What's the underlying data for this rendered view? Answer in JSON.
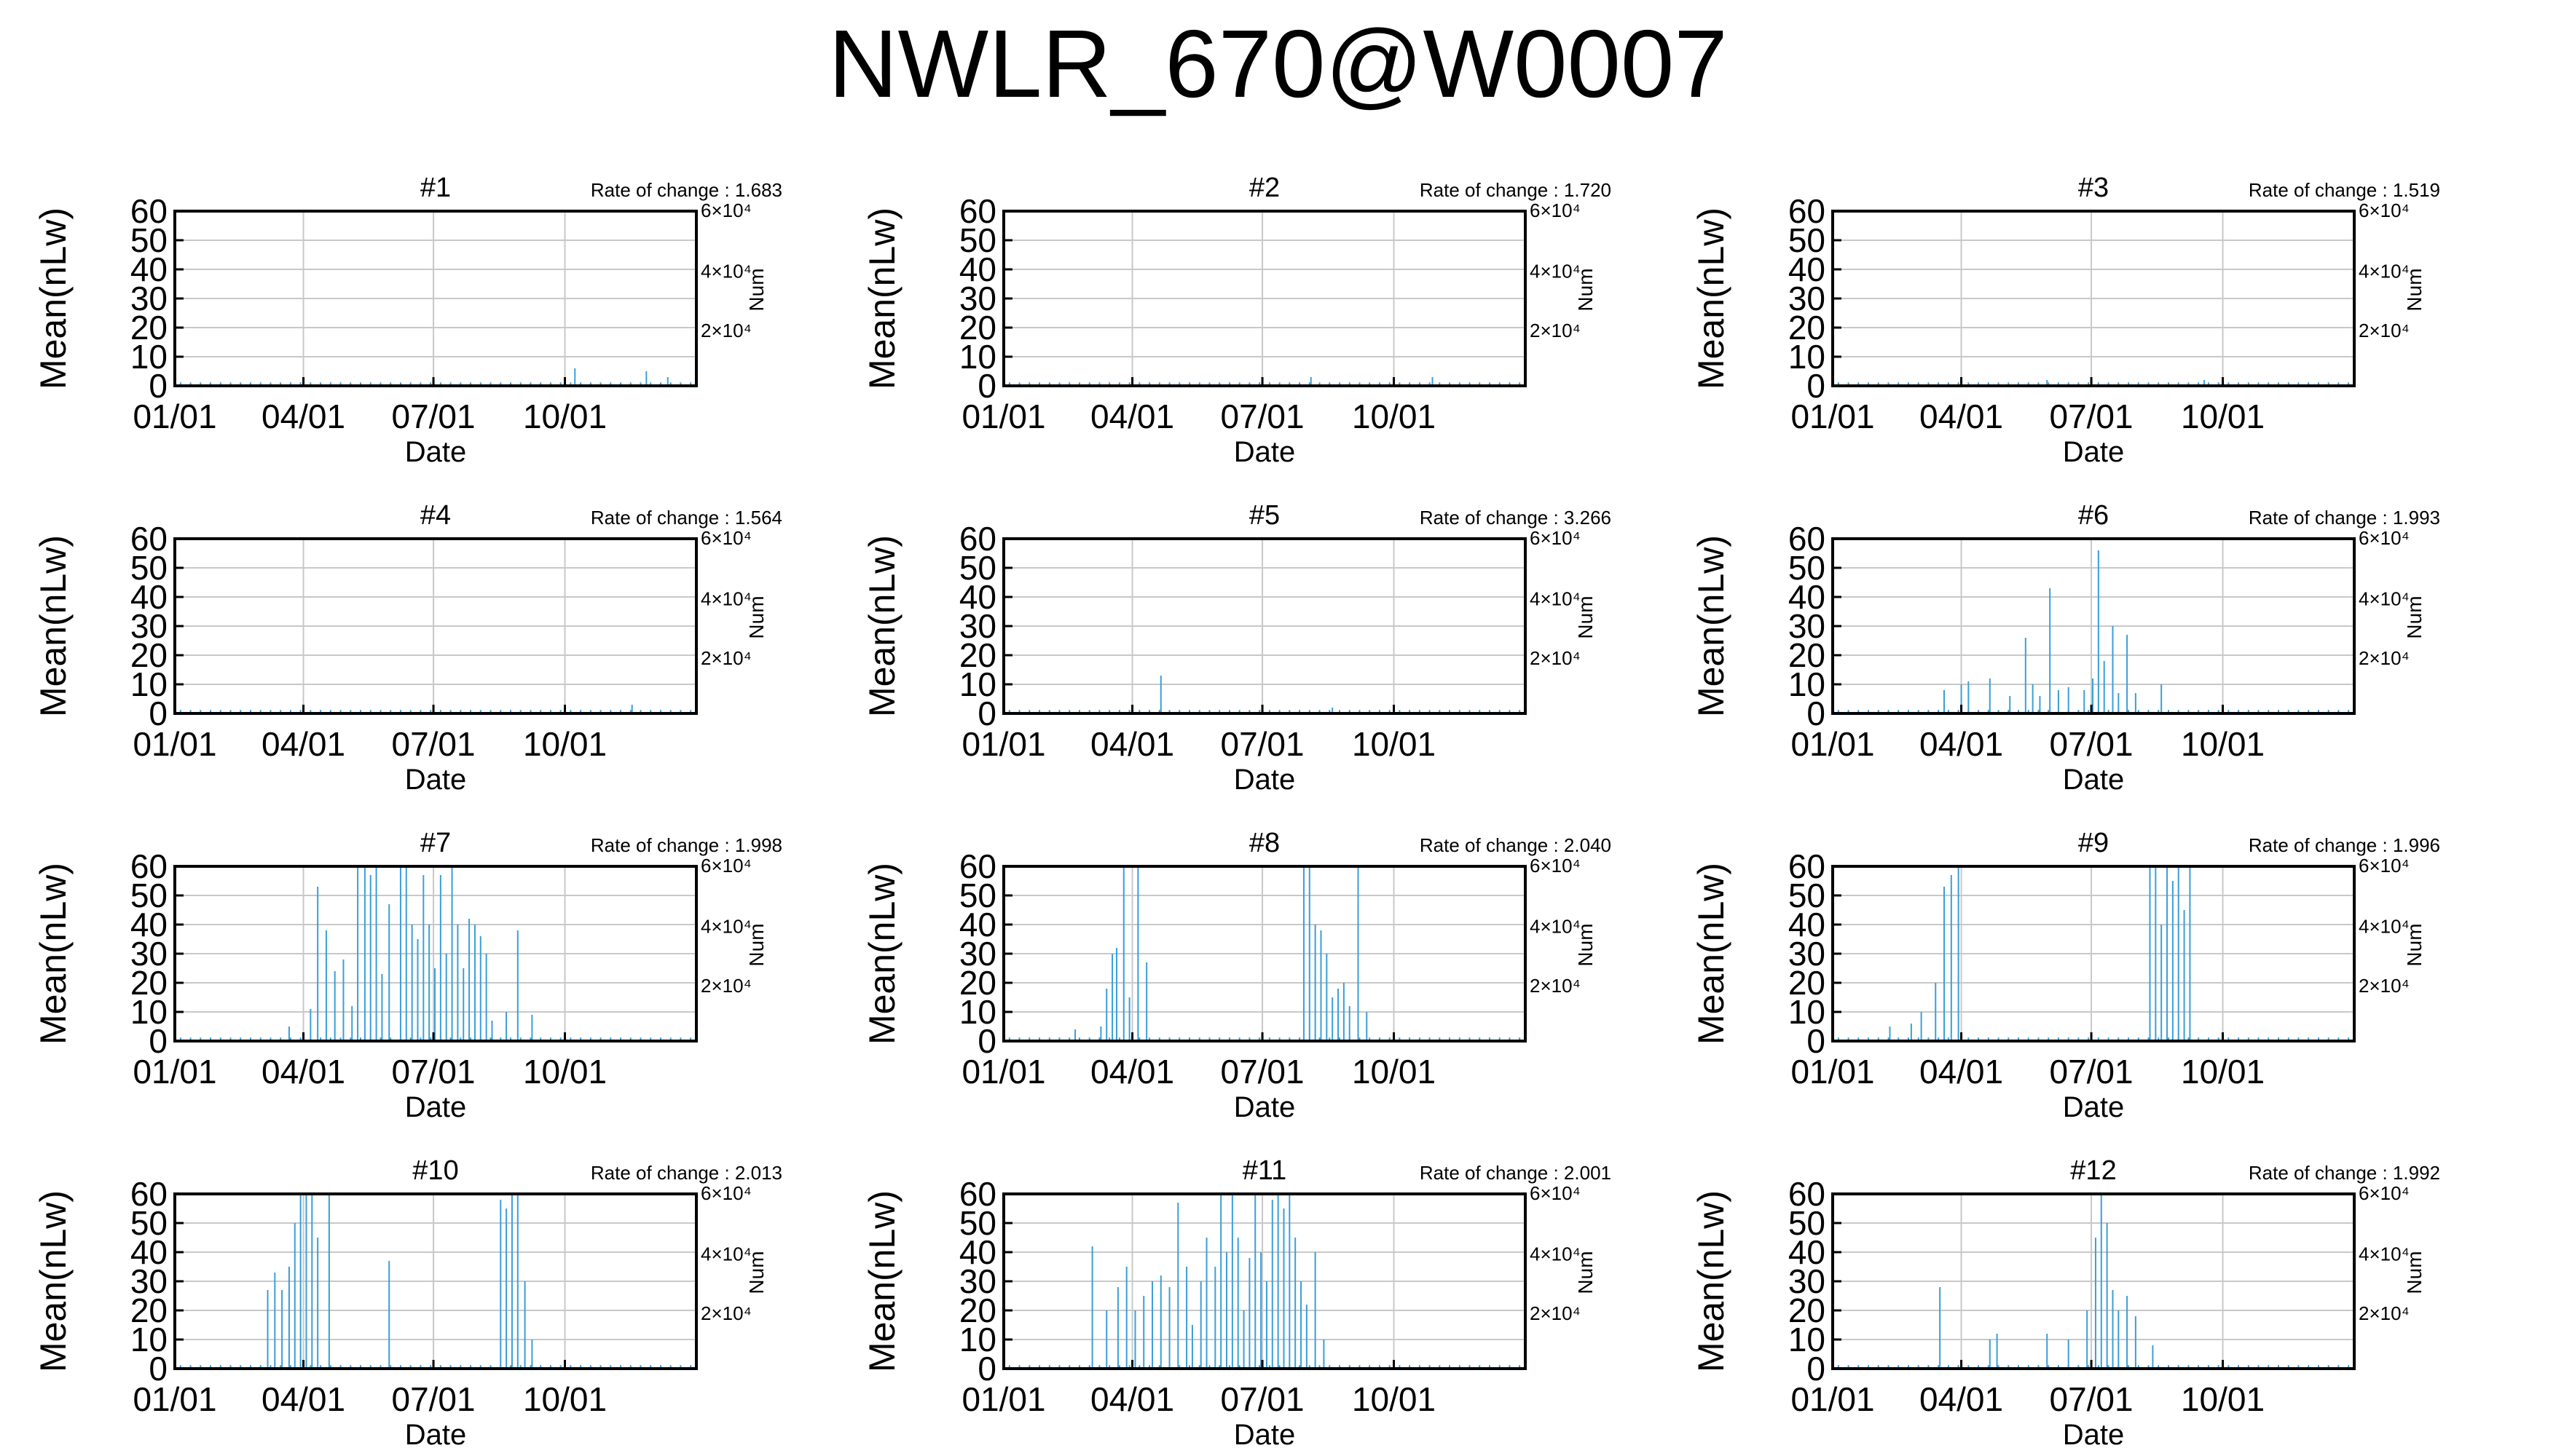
{
  "page": {
    "title": "NWLR_670@W0007"
  },
  "colors": {
    "bar": "#3a9fd8",
    "axis": "#000000",
    "grid": "#c8c8c8"
  },
  "chart_data": [
    {
      "type": "bar",
      "title": "#1",
      "rate_label": "Rate of change : 1.683",
      "xlabel": "Date",
      "ylabel": "Mean(nLw)",
      "y2label": "Num",
      "xticks": [
        "01/01",
        "04/01",
        "07/01",
        "10/01"
      ],
      "ylim": [
        0,
        60
      ],
      "yticks": [
        0,
        10,
        20,
        30,
        40,
        50,
        60
      ],
      "y2ticks": [
        "2×10⁴",
        "4×10⁴",
        "6×10⁴"
      ],
      "grid": true,
      "bars": [
        [
          280,
          6
        ],
        [
          330,
          5
        ],
        [
          345,
          3
        ]
      ]
    },
    {
      "type": "bar",
      "title": "#2",
      "rate_label": "Rate of change : 1.720",
      "xlabel": "Date",
      "ylabel": "Mean(nLw)",
      "y2label": "Num",
      "xticks": [
        "01/01",
        "04/01",
        "07/01",
        "10/01"
      ],
      "ylim": [
        0,
        60
      ],
      "yticks": [
        0,
        10,
        20,
        30,
        40,
        50,
        60
      ],
      "y2ticks": [
        "2×10⁴",
        "4×10⁴",
        "6×10⁴"
      ],
      "grid": true,
      "bars": [
        [
          215,
          3
        ],
        [
          300,
          3
        ]
      ]
    },
    {
      "type": "bar",
      "title": "#3",
      "rate_label": "Rate of change : 1.519",
      "xlabel": "Date",
      "ylabel": "Mean(nLw)",
      "y2label": "Num",
      "xticks": [
        "01/01",
        "04/01",
        "07/01",
        "10/01"
      ],
      "ylim": [
        0,
        60
      ],
      "yticks": [
        0,
        10,
        20,
        30,
        40,
        50,
        60
      ],
      "y2ticks": [
        "2×10⁴",
        "4×10⁴",
        "6×10⁴"
      ],
      "grid": true,
      "bars": [
        [
          150,
          2
        ],
        [
          260,
          2
        ]
      ]
    },
    {
      "type": "bar",
      "title": "#4",
      "rate_label": "Rate of change : 1.564",
      "xlabel": "Date",
      "ylabel": "Mean(nLw)",
      "y2label": "Num",
      "xticks": [
        "01/01",
        "04/01",
        "07/01",
        "10/01"
      ],
      "ylim": [
        0,
        60
      ],
      "yticks": [
        0,
        10,
        20,
        30,
        40,
        50,
        60
      ],
      "y2ticks": [
        "2×10⁴",
        "4×10⁴",
        "6×10⁴"
      ],
      "grid": true,
      "bars": [
        [
          320,
          3
        ]
      ]
    },
    {
      "type": "bar",
      "title": "#5",
      "rate_label": "Rate of change : 3.266",
      "xlabel": "Date",
      "ylabel": "Mean(nLw)",
      "y2label": "Num",
      "xticks": [
        "01/01",
        "04/01",
        "07/01",
        "10/01"
      ],
      "ylim": [
        0,
        60
      ],
      "yticks": [
        0,
        10,
        20,
        30,
        40,
        50,
        60
      ],
      "y2ticks": [
        "2×10⁴",
        "4×10⁴",
        "6×10⁴"
      ],
      "grid": true,
      "bars": [
        [
          110,
          13
        ],
        [
          230,
          2
        ]
      ]
    },
    {
      "type": "bar",
      "title": "#6",
      "rate_label": "Rate of change : 1.993",
      "xlabel": "Date",
      "ylabel": "Mean(nLw)",
      "y2label": "Num",
      "xticks": [
        "01/01",
        "04/01",
        "07/01",
        "10/01"
      ],
      "ylim": [
        0,
        60
      ],
      "yticks": [
        0,
        10,
        20,
        30,
        40,
        50,
        60
      ],
      "y2ticks": [
        "2×10⁴",
        "4×10⁴",
        "6×10⁴"
      ],
      "grid": true,
      "bars": [
        [
          78,
          8
        ],
        [
          90,
          10
        ],
        [
          95,
          11
        ],
        [
          110,
          12
        ],
        [
          124,
          6
        ],
        [
          135,
          26
        ],
        [
          140,
          10
        ],
        [
          145,
          6
        ],
        [
          152,
          43
        ],
        [
          158,
          8
        ],
        [
          165,
          9
        ],
        [
          176,
          8
        ],
        [
          182,
          12
        ],
        [
          186,
          56
        ],
        [
          190,
          18
        ],
        [
          196,
          30
        ],
        [
          200,
          7
        ],
        [
          206,
          27
        ],
        [
          212,
          7
        ],
        [
          230,
          10
        ]
      ]
    },
    {
      "type": "bar",
      "title": "#7",
      "rate_label": "Rate of change : 1.998",
      "xlabel": "Date",
      "ylabel": "Mean(nLw)",
      "y2label": "Num",
      "xticks": [
        "01/01",
        "04/01",
        "07/01",
        "10/01"
      ],
      "ylim": [
        0,
        60
      ],
      "yticks": [
        0,
        10,
        20,
        30,
        40,
        50,
        60
      ],
      "y2ticks": [
        "2×10⁴",
        "4×10⁴",
        "6×10⁴"
      ],
      "grid": true,
      "bars": [
        [
          80,
          5
        ],
        [
          95,
          11
        ],
        [
          100,
          53
        ],
        [
          106,
          38
        ],
        [
          112,
          24
        ],
        [
          118,
          28
        ],
        [
          124,
          12
        ],
        [
          128,
          60
        ],
        [
          133,
          60
        ],
        [
          137,
          57
        ],
        [
          141,
          60
        ],
        [
          145,
          23
        ],
        [
          150,
          47
        ],
        [
          158,
          60
        ],
        [
          162,
          60
        ],
        [
          166,
          40
        ],
        [
          170,
          35
        ],
        [
          174,
          57
        ],
        [
          178,
          40
        ],
        [
          182,
          25
        ],
        [
          186,
          57
        ],
        [
          190,
          30
        ],
        [
          194,
          60
        ],
        [
          198,
          40
        ],
        [
          202,
          25
        ],
        [
          206,
          42
        ],
        [
          210,
          40
        ],
        [
          214,
          36
        ],
        [
          218,
          30
        ],
        [
          222,
          7
        ],
        [
          232,
          10
        ],
        [
          240,
          38
        ],
        [
          250,
          9
        ]
      ]
    },
    {
      "type": "bar",
      "title": "#8",
      "rate_label": "Rate of change : 2.040",
      "xlabel": "Date",
      "ylabel": "Mean(nLw)",
      "y2label": "Num",
      "xticks": [
        "01/01",
        "04/01",
        "07/01",
        "10/01"
      ],
      "ylim": [
        0,
        60
      ],
      "yticks": [
        0,
        10,
        20,
        30,
        40,
        50,
        60
      ],
      "y2ticks": [
        "2×10⁴",
        "4×10⁴",
        "6×10⁴"
      ],
      "grid": true,
      "bars": [
        [
          50,
          4
        ],
        [
          68,
          5
        ],
        [
          72,
          18
        ],
        [
          76,
          30
        ],
        [
          79,
          32
        ],
        [
          84,
          60
        ],
        [
          88,
          15
        ],
        [
          94,
          60
        ],
        [
          100,
          27
        ],
        [
          210,
          60
        ],
        [
          214,
          60
        ],
        [
          218,
          40
        ],
        [
          222,
          38
        ],
        [
          226,
          30
        ],
        [
          230,
          15
        ],
        [
          234,
          18
        ],
        [
          238,
          20
        ],
        [
          242,
          12
        ],
        [
          248,
          60
        ],
        [
          254,
          10
        ]
      ]
    },
    {
      "type": "bar",
      "title": "#9",
      "rate_label": "Rate of change : 1.996",
      "xlabel": "Date",
      "ylabel": "Mean(nLw)",
      "y2label": "Num",
      "xticks": [
        "01/01",
        "04/01",
        "07/01",
        "10/01"
      ],
      "ylim": [
        0,
        60
      ],
      "yticks": [
        0,
        10,
        20,
        30,
        40,
        50,
        60
      ],
      "y2ticks": [
        "2×10⁴",
        "4×10⁴",
        "6×10⁴"
      ],
      "grid": true,
      "bars": [
        [
          40,
          5
        ],
        [
          55,
          6
        ],
        [
          62,
          10
        ],
        [
          72,
          20
        ],
        [
          78,
          53
        ],
        [
          83,
          57
        ],
        [
          88,
          60
        ],
        [
          222,
          60
        ],
        [
          226,
          60
        ],
        [
          230,
          40
        ],
        [
          234,
          60
        ],
        [
          238,
          55
        ],
        [
          242,
          60
        ],
        [
          246,
          45
        ],
        [
          250,
          60
        ]
      ]
    },
    {
      "type": "bar",
      "title": "#10",
      "rate_label": "Rate of change : 2.013",
      "xlabel": "Date",
      "ylabel": "Mean(nLw)",
      "y2label": "Num",
      "xticks": [
        "01/01",
        "04/01",
        "07/01",
        "10/01"
      ],
      "ylim": [
        0,
        60
      ],
      "yticks": [
        0,
        10,
        20,
        30,
        40,
        50,
        60
      ],
      "y2ticks": [
        "2×10⁴",
        "4×10⁴",
        "6×10⁴"
      ],
      "grid": true,
      "bars": [
        [
          65,
          27
        ],
        [
          70,
          33
        ],
        [
          75,
          27
        ],
        [
          80,
          35
        ],
        [
          84,
          50
        ],
        [
          88,
          60
        ],
        [
          92,
          60
        ],
        [
          96,
          60
        ],
        [
          100,
          45
        ],
        [
          108,
          60
        ],
        [
          150,
          37
        ],
        [
          228,
          58
        ],
        [
          232,
          55
        ],
        [
          236,
          60
        ],
        [
          240,
          60
        ],
        [
          245,
          30
        ],
        [
          250,
          10
        ]
      ]
    },
    {
      "type": "bar",
      "title": "#11",
      "rate_label": "Rate of change : 2.001",
      "xlabel": "Date",
      "ylabel": "Mean(nLw)",
      "y2label": "Num",
      "xticks": [
        "01/01",
        "04/01",
        "07/01",
        "10/01"
      ],
      "ylim": [
        0,
        60
      ],
      "yticks": [
        0,
        10,
        20,
        30,
        40,
        50,
        60
      ],
      "y2ticks": [
        "2×10⁴",
        "4×10⁴",
        "6×10⁴"
      ],
      "grid": true,
      "bars": [
        [
          62,
          42
        ],
        [
          72,
          20
        ],
        [
          80,
          28
        ],
        [
          86,
          35
        ],
        [
          92,
          20
        ],
        [
          98,
          25
        ],
        [
          104,
          30
        ],
        [
          110,
          32
        ],
        [
          116,
          28
        ],
        [
          122,
          57
        ],
        [
          128,
          35
        ],
        [
          132,
          15
        ],
        [
          138,
          30
        ],
        [
          142,
          45
        ],
        [
          148,
          35
        ],
        [
          152,
          60
        ],
        [
          156,
          40
        ],
        [
          160,
          60
        ],
        [
          164,
          45
        ],
        [
          168,
          20
        ],
        [
          172,
          38
        ],
        [
          176,
          60
        ],
        [
          180,
          40
        ],
        [
          184,
          30
        ],
        [
          188,
          58
        ],
        [
          192,
          60
        ],
        [
          196,
          55
        ],
        [
          200,
          60
        ],
        [
          204,
          45
        ],
        [
          208,
          30
        ],
        [
          212,
          22
        ],
        [
          218,
          40
        ],
        [
          224,
          10
        ]
      ]
    },
    {
      "type": "bar",
      "title": "#12",
      "rate_label": "Rate of change : 1.992",
      "xlabel": "Date",
      "ylabel": "Mean(nLw)",
      "y2label": "Num",
      "xticks": [
        "01/01",
        "04/01",
        "07/01",
        "10/01"
      ],
      "ylim": [
        0,
        60
      ],
      "yticks": [
        0,
        10,
        20,
        30,
        40,
        50,
        60
      ],
      "y2ticks": [
        "2×10⁴",
        "4×10⁴",
        "6×10⁴"
      ],
      "grid": true,
      "bars": [
        [
          75,
          28
        ],
        [
          110,
          10
        ],
        [
          115,
          12
        ],
        [
          150,
          12
        ],
        [
          165,
          10
        ],
        [
          178,
          20
        ],
        [
          184,
          45
        ],
        [
          188,
          60
        ],
        [
          192,
          50
        ],
        [
          196,
          27
        ],
        [
          200,
          20
        ],
        [
          206,
          25
        ],
        [
          212,
          18
        ],
        [
          224,
          8
        ]
      ]
    }
  ]
}
